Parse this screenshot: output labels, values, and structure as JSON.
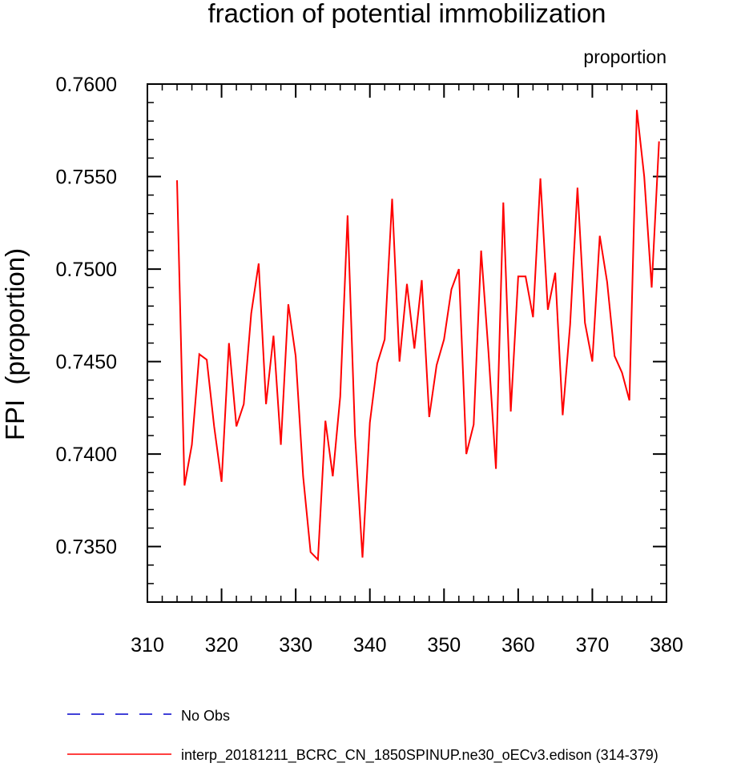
{
  "chart_data": {
    "type": "line",
    "title": "fraction of potential immobilization",
    "units_label": "proportion",
    "ylabel": "FPI  (proportion)",
    "xlabel": "",
    "xlim": [
      310,
      380
    ],
    "ylim": [
      0.732,
      0.76
    ],
    "x_ticks": [
      310,
      320,
      330,
      340,
      350,
      360,
      370,
      380
    ],
    "y_ticks": [
      0.735,
      0.74,
      0.745,
      0.75,
      0.755,
      0.76
    ],
    "y_tick_labels": [
      "0.7350",
      "0.7400",
      "0.7450",
      "0.7500",
      "0.7550",
      "0.7600"
    ],
    "x_minor_step": 2,
    "y_minor_step": 0.001,
    "grid": false,
    "series": [
      {
        "name": "interp_20181211_BCRC_CN_1850SPINUP.ne30_oECv3.edison (314-379)",
        "color": "#ff0000",
        "style": "solid",
        "x": [
          314,
          315,
          316,
          317,
          318,
          319,
          320,
          321,
          322,
          323,
          324,
          325,
          326,
          327,
          328,
          329,
          330,
          331,
          332,
          333,
          334,
          335,
          336,
          337,
          338,
          339,
          340,
          341,
          342,
          343,
          344,
          345,
          346,
          347,
          348,
          349,
          350,
          351,
          352,
          353,
          354,
          355,
          356,
          357,
          358,
          359,
          360,
          361,
          362,
          363,
          364,
          365,
          366,
          367,
          368,
          369,
          370,
          371,
          372,
          373,
          374,
          375,
          376,
          377,
          378,
          379
        ],
        "values": [
          0.7548,
          0.7383,
          0.7405,
          0.7454,
          0.7451,
          0.7415,
          0.7385,
          0.746,
          0.7415,
          0.7427,
          0.7476,
          0.7503,
          0.7427,
          0.7464,
          0.7405,
          0.7481,
          0.7453,
          0.7388,
          0.7347,
          0.7343,
          0.7418,
          0.7388,
          0.7431,
          0.7529,
          0.741,
          0.7344,
          0.7417,
          0.7449,
          0.7462,
          0.7538,
          0.745,
          0.7492,
          0.7457,
          0.7494,
          0.742,
          0.7448,
          0.7462,
          0.7489,
          0.75,
          0.74,
          0.7416,
          0.751,
          0.7455,
          0.7392,
          0.7536,
          0.7423,
          0.7496,
          0.7496,
          0.7474,
          0.7549,
          0.7478,
          0.7498,
          0.7421,
          0.747,
          0.7544,
          0.7471,
          0.745,
          0.7518,
          0.7493,
          0.7453,
          0.7444,
          0.7429,
          0.7586,
          0.755,
          0.749,
          0.7569
        ]
      }
    ],
    "legend": [
      {
        "label": "No Obs",
        "color": "#0000cc",
        "style": "dashed"
      },
      {
        "label": "interp_20181211_BCRC_CN_1850SPINUP.ne30_oECv3.edison (314-379)",
        "color": "#ff0000",
        "style": "solid"
      }
    ],
    "legend_position": "bottom"
  }
}
